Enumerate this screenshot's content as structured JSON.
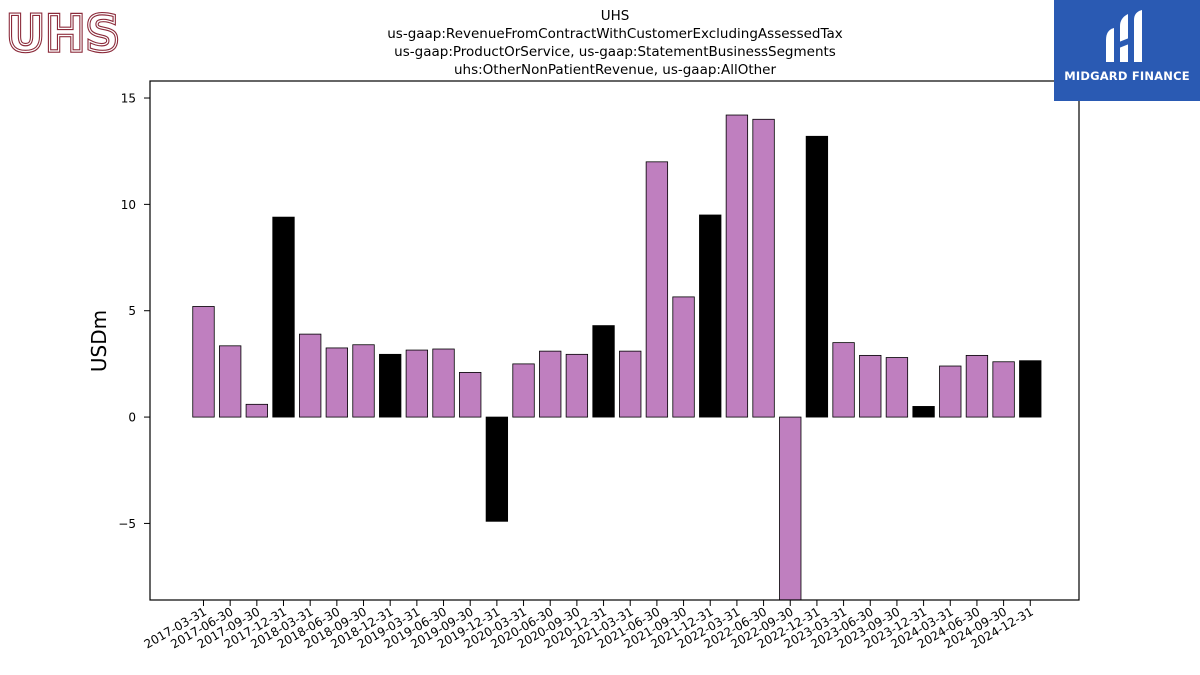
{
  "logos": {
    "left_text": "UHS",
    "left_color": "#8b2a3a",
    "right_text": "MIDGARD FINANCE",
    "right_bg": "#2a5ab3"
  },
  "chart_data": {
    "type": "bar",
    "title_lines": [
      "UHS",
      "us-gaap:RevenueFromContractWithCustomerExcludingAssessedTax",
      "us-gaap:ProductOrService, us-gaap:StatementBusinessSegments",
      "uhs:OtherNonPatientRevenue, us-gaap:AllOther"
    ],
    "ylabel": "USDm",
    "xlabel": "",
    "ylim": [
      -8.6,
      15.8
    ],
    "yticks": [
      -5,
      0,
      5,
      10,
      15
    ],
    "ytick_labels": [
      "−5",
      "0",
      "5",
      "10",
      "15"
    ],
    "grid": false,
    "colors": {
      "quarter": "#bf7fbf",
      "q4": "#000000",
      "edge": "#000000"
    },
    "categories": [
      "2017-03-31",
      "2017-06-30",
      "2017-09-30",
      "2017-12-31",
      "2018-03-31",
      "2018-06-30",
      "2018-09-30",
      "2018-12-31",
      "2019-03-31",
      "2019-06-30",
      "2019-09-30",
      "2019-12-31",
      "2020-03-31",
      "2020-06-30",
      "2020-09-30",
      "2020-12-31",
      "2021-03-31",
      "2021-06-30",
      "2021-09-30",
      "2021-12-31",
      "2022-03-31",
      "2022-06-30",
      "2022-09-30",
      "2022-12-31",
      "2023-03-31",
      "2023-06-30",
      "2023-09-30",
      "2023-12-31",
      "2024-03-31",
      "2024-06-30",
      "2024-09-30",
      "2024-12-31"
    ],
    "values": [
      5.2,
      3.35,
      0.6,
      9.4,
      3.9,
      3.25,
      3.4,
      2.95,
      3.15,
      3.2,
      2.1,
      -4.9,
      2.5,
      3.1,
      2.95,
      4.3,
      3.1,
      12.0,
      5.65,
      9.5,
      14.2,
      14.0,
      -8.6,
      13.2,
      3.5,
      2.9,
      2.8,
      0.5,
      2.4,
      2.9,
      2.6,
      2.65
    ],
    "bar_kind": [
      "q",
      "q",
      "q",
      "q4",
      "q",
      "q",
      "q",
      "q4",
      "q",
      "q",
      "q",
      "q4",
      "q",
      "q",
      "q",
      "q4",
      "q",
      "q",
      "q",
      "q4",
      "q",
      "q",
      "q",
      "q4",
      "q",
      "q",
      "q",
      "q4",
      "q",
      "q",
      "q",
      "q4"
    ]
  }
}
